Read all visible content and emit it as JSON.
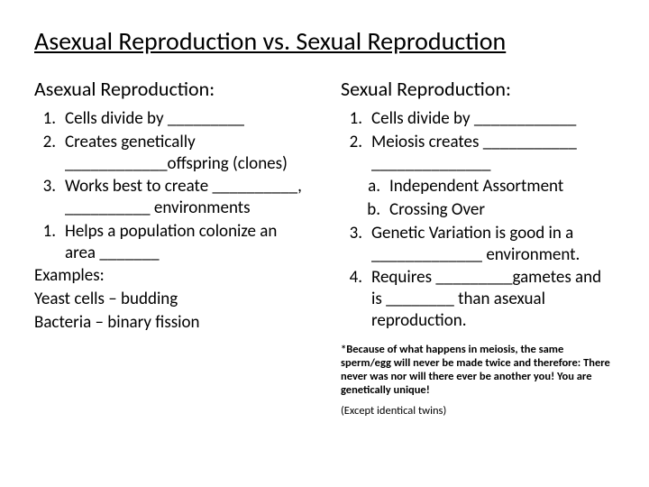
{
  "title": "Asexual Reproduction vs. Sexual Reproduction",
  "left": {
    "heading": "Asexual Reproduction:",
    "i1_num": "1.",
    "i1_txt": "Cells divide by _________",
    "i2_num": "2.",
    "i2_txt": "Creates genetically ____________offspring (clones)",
    "i3_num": "3.",
    "i3_txt": "Works best to create __________, __________ environments",
    "i4_num": "1.",
    "i4_txt": "Helps a population colonize an area _______",
    "ex_label": "Examples:",
    "ex1": "Yeast cells – budding",
    "ex2": "Bacteria – binary fission"
  },
  "right": {
    "heading": "Sexual Reproduction:",
    "i1_num": "1.",
    "i1_txt": "Cells divide by ____________",
    "i2_num": "2.",
    "i2_txt": "Meiosis creates ___________ ______________",
    "i2a_num": "a.",
    "i2a_txt": "Independent Assortment",
    "i2b_num": "b.",
    "i2b_txt": "Crossing Over",
    "i3_num": "3.",
    "i3_txt": "Genetic Variation is good in a _____________ environment.",
    "i4_num": "4.",
    "i4_txt": "Requires _________gametes and is ________ than asexual reproduction.",
    "foot1_lead": "*Because of what happens in meiosis, the same sperm/egg will never be made twice and therefore:",
    "foot1_bold": "There never was nor will there ever be another you! You are genetically unique!",
    "foot2": "(Except identical twins)"
  }
}
